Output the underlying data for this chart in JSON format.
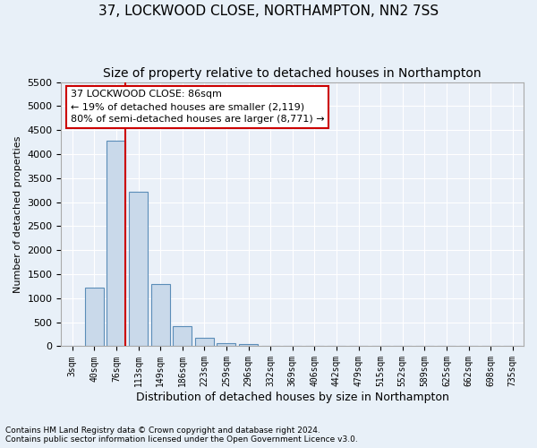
{
  "title1": "37, LOCKWOOD CLOSE, NORTHAMPTON, NN2 7SS",
  "title2": "Size of property relative to detached houses in Northampton",
  "xlabel": "Distribution of detached houses by size in Northampton",
  "ylabel": "Number of detached properties",
  "categories": [
    "3sqm",
    "40sqm",
    "76sqm",
    "113sqm",
    "149sqm",
    "186sqm",
    "223sqm",
    "259sqm",
    "296sqm",
    "332sqm",
    "369sqm",
    "406sqm",
    "442sqm",
    "479sqm",
    "515sqm",
    "552sqm",
    "589sqm",
    "625sqm",
    "662sqm",
    "698sqm",
    "735sqm"
  ],
  "values": [
    0,
    1230,
    4280,
    3220,
    1300,
    420,
    170,
    70,
    40,
    10,
    5,
    0,
    0,
    0,
    0,
    0,
    0,
    0,
    0,
    0,
    0
  ],
  "bar_color": "#c9d9ea",
  "bar_edge_color": "#5b8db8",
  "ylim": [
    0,
    5500
  ],
  "yticks": [
    0,
    500,
    1000,
    1500,
    2000,
    2500,
    3000,
    3500,
    4000,
    4500,
    5000,
    5500
  ],
  "property_line_color": "#cc0000",
  "annotation_text": "37 LOCKWOOD CLOSE: 86sqm\n← 19% of detached houses are smaller (2,119)\n80% of semi-detached houses are larger (8,771) →",
  "annotation_box_color": "#ffffff",
  "annotation_box_edge": "#cc0000",
  "footnote1": "Contains HM Land Registry data © Crown copyright and database right 2024.",
  "footnote2": "Contains public sector information licensed under the Open Government Licence v3.0.",
  "bg_color": "#e8f0f8",
  "plot_bg_color": "#eaf0f8",
  "grid_color": "#ffffff",
  "title_fontsize": 11,
  "subtitle_fontsize": 10
}
